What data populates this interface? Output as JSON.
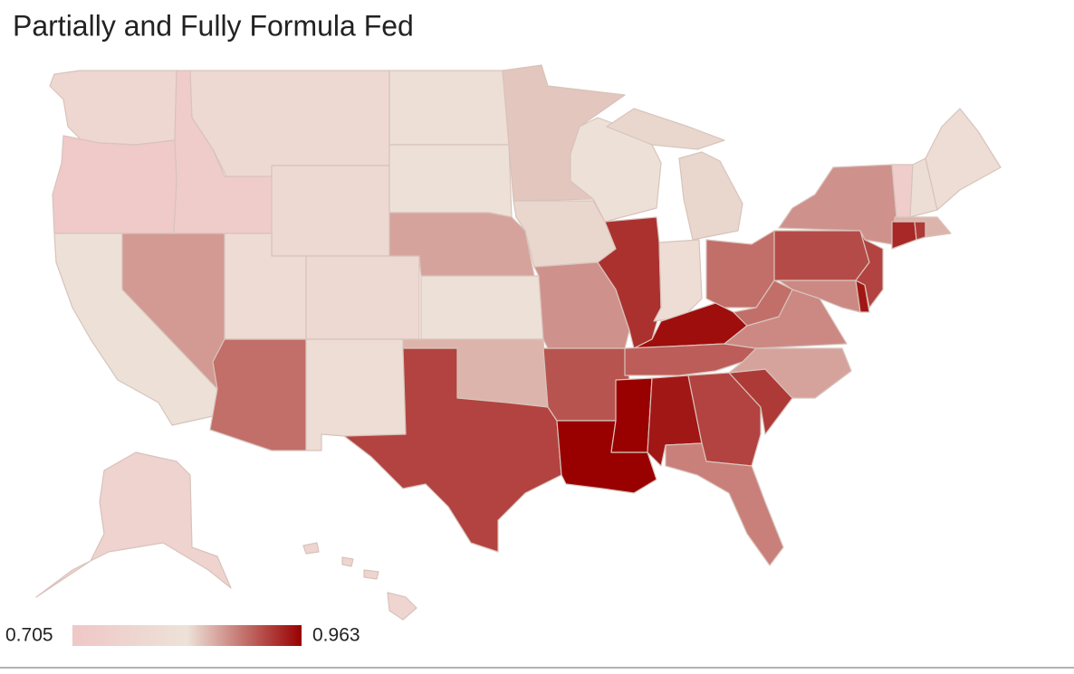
{
  "chart_data": {
    "type": "choropleth",
    "title": "Partially and Fully Formula Fed",
    "colorscale": {
      "min": 0.705,
      "max": 0.963,
      "colors": [
        "#efc7c7",
        "#ede2d8",
        "#990000"
      ]
    },
    "values": [
      0.78,
      0.72,
      0.83,
      0.73,
      0.79,
      0.79,
      0.875,
      0.8,
      0.79,
      0.9,
      0.81,
      0.82,
      0.83,
      0.87,
      0.83,
      0.86,
      0.925,
      0.85,
      0.84,
      0.88,
      0.915,
      0.963,
      0.83,
      0.935,
      0.84,
      0.81,
      0.9,
      0.955,
      0.91,
      0.963,
      0.95,
      0.925,
      0.89,
      0.93,
      0.87,
      0.885,
      0.9,
      0.92,
      0.88,
      0.885,
      0.95,
      0.925,
      0.94,
      0.93,
      0.86,
      0.735,
      0.815,
      0.81,
      0.76,
      0.77
    ]
  }
}
